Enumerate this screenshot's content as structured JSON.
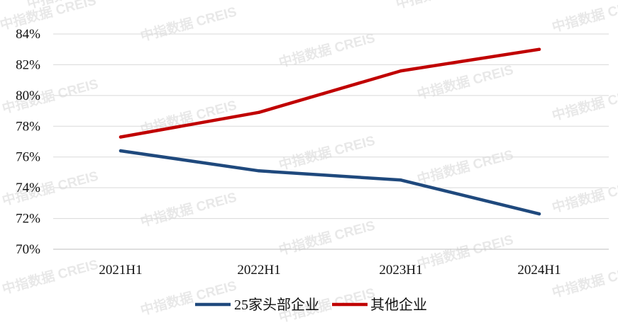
{
  "watermark_text": "中指数据 CREIS",
  "chart_data": {
    "type": "line",
    "categories": [
      "2021H1",
      "2022H1",
      "2023H1",
      "2024H1"
    ],
    "series": [
      {
        "name": "25家头部企业",
        "values": [
          76.4,
          75.1,
          74.5,
          72.3
        ],
        "color": "#1f497d"
      },
      {
        "name": "其他企业",
        "values": [
          77.3,
          78.9,
          81.6,
          83.0
        ],
        "color": "#c00000"
      }
    ],
    "yticks": [
      "70%",
      "72%",
      "74%",
      "76%",
      "78%",
      "80%",
      "82%",
      "84%"
    ],
    "ylim": [
      70,
      84
    ],
    "grid": true,
    "legend_position": "bottom-center",
    "title": "",
    "xlabel": "",
    "ylabel": ""
  }
}
